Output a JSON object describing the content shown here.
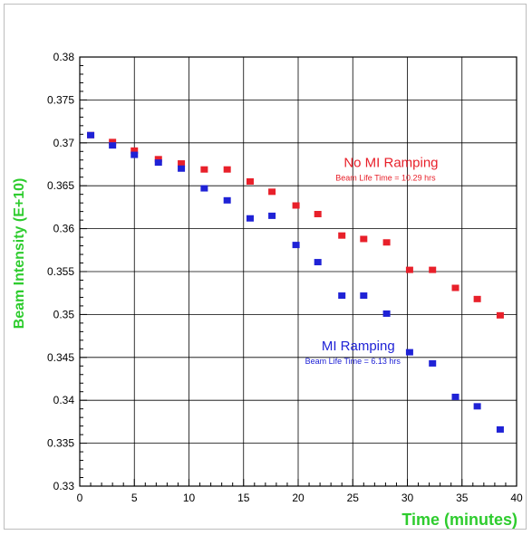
{
  "chart_data": {
    "type": "scatter",
    "xlabel": "Time (minutes)",
    "ylabel": "Beam Intensity (E+10)",
    "xlim": [
      0,
      40
    ],
    "ylim": [
      0.33,
      0.38
    ],
    "x_ticks": [
      0,
      5,
      10,
      15,
      20,
      25,
      30,
      35,
      40
    ],
    "y_ticks": [
      0.33,
      0.335,
      0.34,
      0.345,
      0.35,
      0.355,
      0.36,
      0.365,
      0.37,
      0.375,
      0.38
    ],
    "grid": true,
    "colors": {
      "axis_label": "#2ecc2e",
      "no_mi_ramping": "#e8202a",
      "mi_ramping": "#1f22d6",
      "grid": "#000000"
    },
    "series": [
      {
        "name": "No MI Ramping",
        "color": "#e8202a",
        "x": [
          1.0,
          3.0,
          5.0,
          7.2,
          9.3,
          11.4,
          13.5,
          15.6,
          17.6,
          19.8,
          21.8,
          24.0,
          26.0,
          28.1,
          30.2,
          32.3,
          34.4,
          36.4,
          38.5
        ],
        "y": [
          0.3709,
          0.3701,
          0.3691,
          0.3681,
          0.3676,
          0.3669,
          0.3669,
          0.3655,
          0.3643,
          0.3627,
          0.3617,
          0.3592,
          0.3588,
          0.3584,
          0.3552,
          0.3552,
          0.3531,
          0.3518,
          0.3499
        ]
      },
      {
        "name": "MI Ramping",
        "color": "#1f22d6",
        "x": [
          1.0,
          3.0,
          5.0,
          7.2,
          9.3,
          11.4,
          13.5,
          15.6,
          17.6,
          19.8,
          21.8,
          24.0,
          26.0,
          28.1,
          30.2,
          32.3,
          34.4,
          36.4,
          38.5
        ],
        "y": [
          0.3709,
          0.3697,
          0.3686,
          0.3677,
          0.367,
          0.3647,
          0.3633,
          0.3612,
          0.3615,
          0.3581,
          0.3561,
          0.3522,
          0.3522,
          0.3501,
          0.3456,
          0.3443,
          0.3404,
          0.3393,
          0.3366
        ]
      }
    ],
    "annotations": [
      {
        "series": "No MI Ramping",
        "title": "No MI Ramping",
        "subtitle": "Beam Life Time = 10.29 hrs",
        "x": 28.5,
        "y": 0.3672
      },
      {
        "series": "MI Ramping",
        "title": "MI Ramping",
        "subtitle": "Beam Life Time = 6.13 hrs",
        "x": 25.5,
        "y": 0.3458
      }
    ]
  }
}
